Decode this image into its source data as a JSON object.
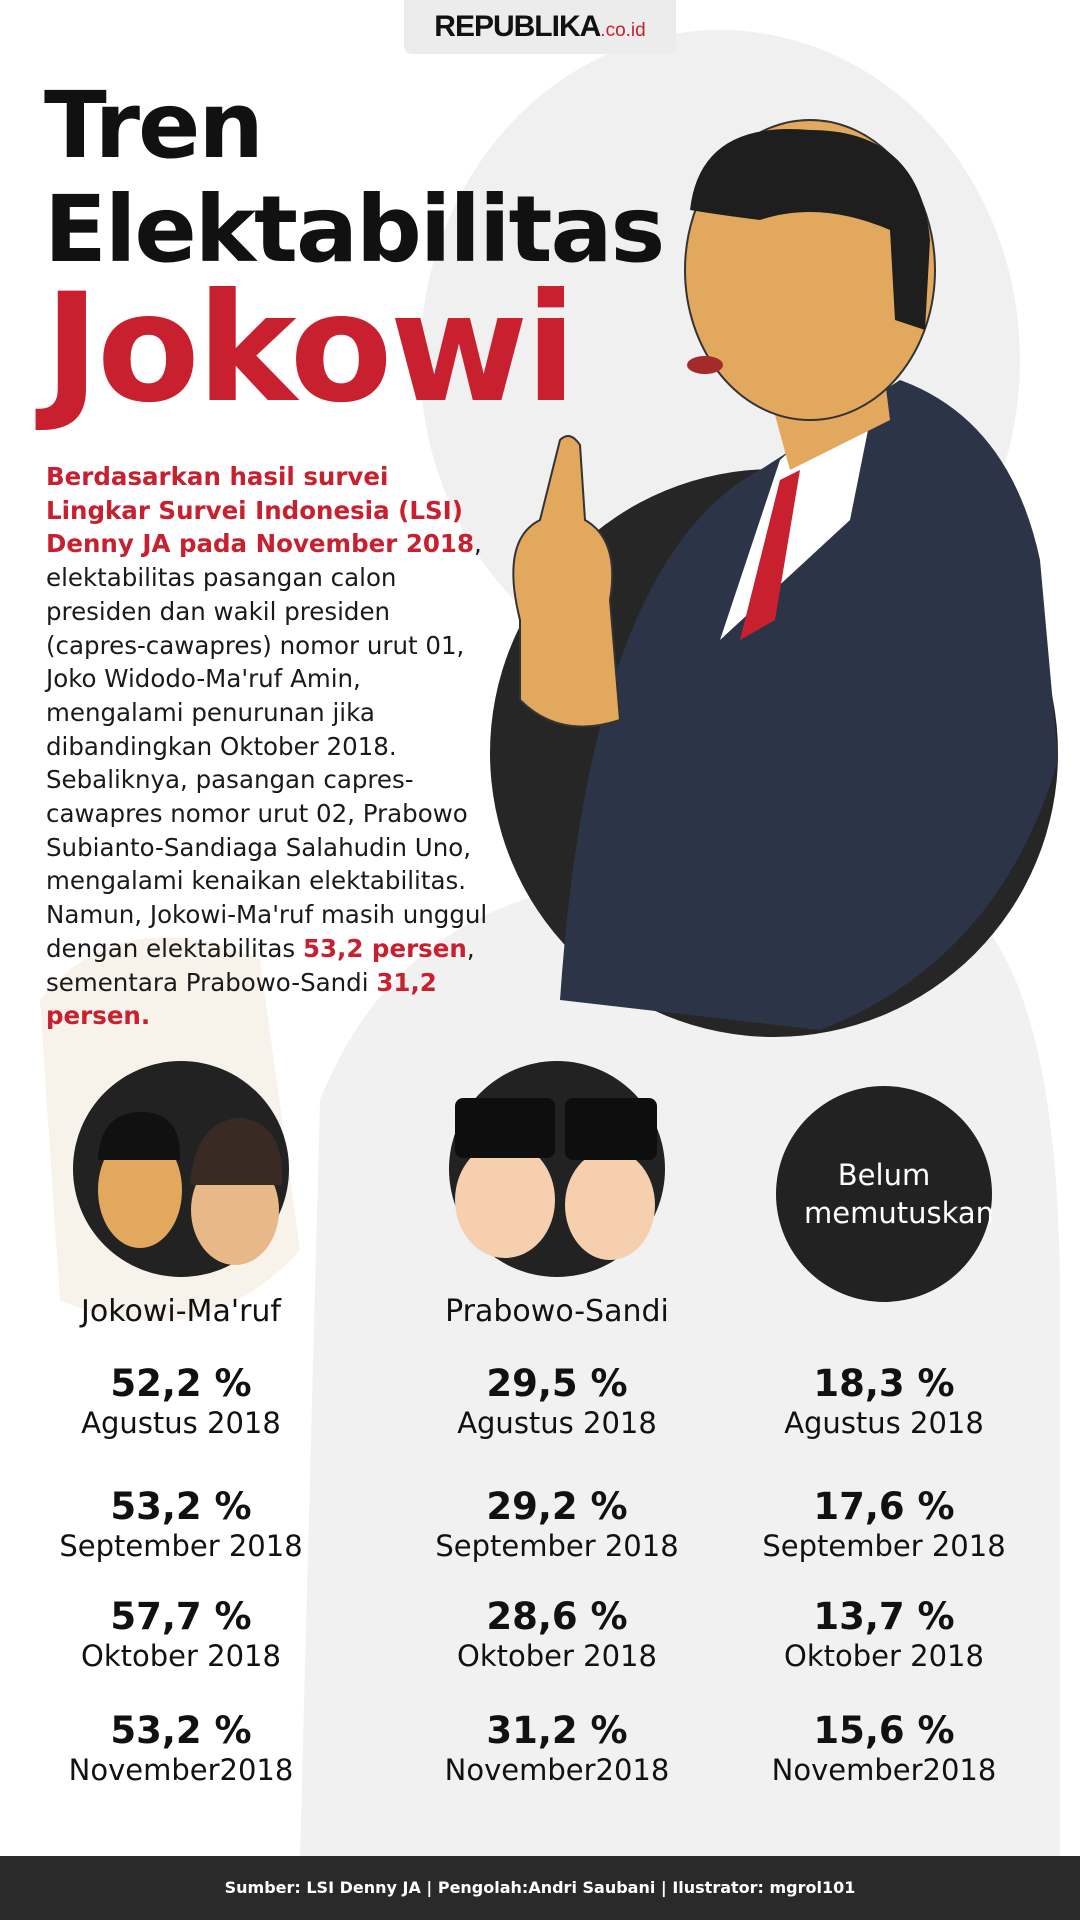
{
  "header": {
    "brand": "REPUBLIKA",
    "domain": ".co.id"
  },
  "title": {
    "line1": "Tren",
    "line2": "Elektabilitas",
    "line3": "Jokowi"
  },
  "intro": [
    {
      "text": "Berdasarkan hasil survei Lingkar Survei Indonesia (LSI) Denny JA pada November 2018",
      "emphasis": true
    },
    {
      "text": ", elektabilitas pasangan calon presiden dan wakil presiden (capres-cawapres) nomor urut 01, Joko Widodo-Ma'ruf Amin, mengalami penurunan jika dibandingkan Oktober 2018. Sebaliknya, pasangan capres-cawapres nomor urut 02, Prabowo Subianto-Sandiaga Salahudin Uno, mengalami kenaikan elektabilitas. Namun, Jokowi-Ma'ruf masih unggul dengan elektabilitas ",
      "emphasis": false
    },
    {
      "text": "53,2 persen",
      "emphasis": true
    },
    {
      "text": ", sementara Prabowo-Sandi ",
      "emphasis": false
    },
    {
      "text": "31,2 persen.",
      "emphasis": true
    }
  ],
  "columns": [
    {
      "name": "Jokowi-Ma'ruf",
      "results": [
        {
          "value": "52,2 %",
          "period": "Agustus 2018"
        },
        {
          "value": "53,2 %",
          "period": "September 2018"
        },
        {
          "value": "57,7 %",
          "period": "Oktober 2018"
        },
        {
          "value": "53,2 %",
          "period": "November2018"
        }
      ]
    },
    {
      "name": "Prabowo-Sandi",
      "results": [
        {
          "value": "29,5 %",
          "period": "Agustus 2018"
        },
        {
          "value": "29,2 %",
          "period": "September 2018"
        },
        {
          "value": "28,6 %",
          "period": "Oktober 2018"
        },
        {
          "value": "31,2 %",
          "period": "November2018"
        }
      ]
    },
    {
      "name": "Belum memutuskan",
      "results": [
        {
          "value": "18,3 %",
          "period": "Agustus 2018"
        },
        {
          "value": "17,6 %",
          "period": "September 2018"
        },
        {
          "value": "13,7 %",
          "period": "Oktober 2018"
        },
        {
          "value": "15,6 %",
          "period": "November2018"
        }
      ]
    }
  ],
  "footer": "Sumber: LSI Denny JA | Pengolah:Andri Saubani | Ilustrator: mgrol101"
}
